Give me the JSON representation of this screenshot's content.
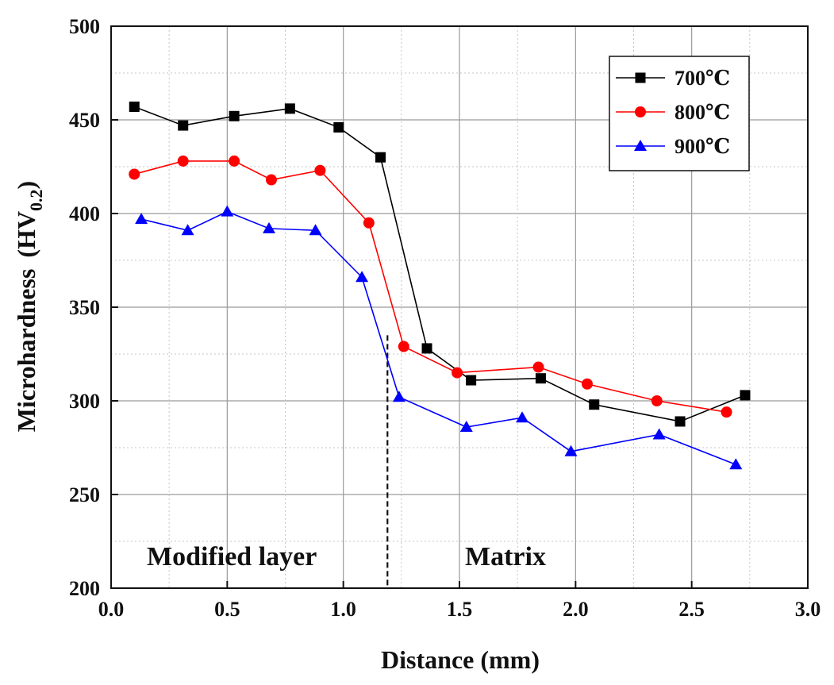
{
  "chart_data": {
    "type": "line",
    "title": "",
    "xlabel": "Distance (mm)",
    "ylabel_main": "Microhardness",
    "ylabel_unit_base": "(HV",
    "ylabel_unit_sub": "0.2",
    "ylabel_unit_close": ")",
    "xlim": [
      0.0,
      3.0
    ],
    "ylim": [
      200,
      500
    ],
    "xticks": [
      "0.0",
      "0.5",
      "1.0",
      "1.5",
      "2.0",
      "2.5",
      "3.0"
    ],
    "yticks": [
      "200",
      "250",
      "300",
      "350",
      "400",
      "450",
      "500"
    ],
    "grid": true,
    "legend_position": "top-right",
    "series": [
      {
        "name": "700℃",
        "color": "#000000",
        "marker": "square",
        "x": [
          0.1,
          0.31,
          0.53,
          0.77,
          0.98,
          1.16,
          1.36,
          1.55,
          1.85,
          2.08,
          2.45,
          2.73
        ],
        "y": [
          457,
          447,
          452,
          456,
          446,
          430,
          328,
          311,
          312,
          298,
          289,
          303
        ]
      },
      {
        "name": "800℃",
        "color": "#ff0000",
        "marker": "circle",
        "x": [
          0.1,
          0.31,
          0.53,
          0.69,
          0.9,
          1.11,
          1.26,
          1.49,
          1.84,
          2.05,
          2.35,
          2.65
        ],
        "y": [
          421,
          428,
          428,
          418,
          423,
          395,
          329,
          315,
          318,
          309,
          300,
          294
        ]
      },
      {
        "name": "900℃",
        "color": "#0000ff",
        "marker": "triangle",
        "x": [
          0.13,
          0.33,
          0.5,
          0.68,
          0.88,
          1.08,
          1.24,
          1.53,
          1.77,
          1.98,
          2.36,
          2.69
        ],
        "y": [
          397,
          391,
          401,
          392,
          391,
          366,
          302,
          286,
          291,
          273,
          282,
          266
        ]
      }
    ],
    "annotations": {
      "left_region": "Modified layer",
      "right_region": "Matrix",
      "boundary_x": 1.19,
      "boundary_y_top": 335
    }
  }
}
